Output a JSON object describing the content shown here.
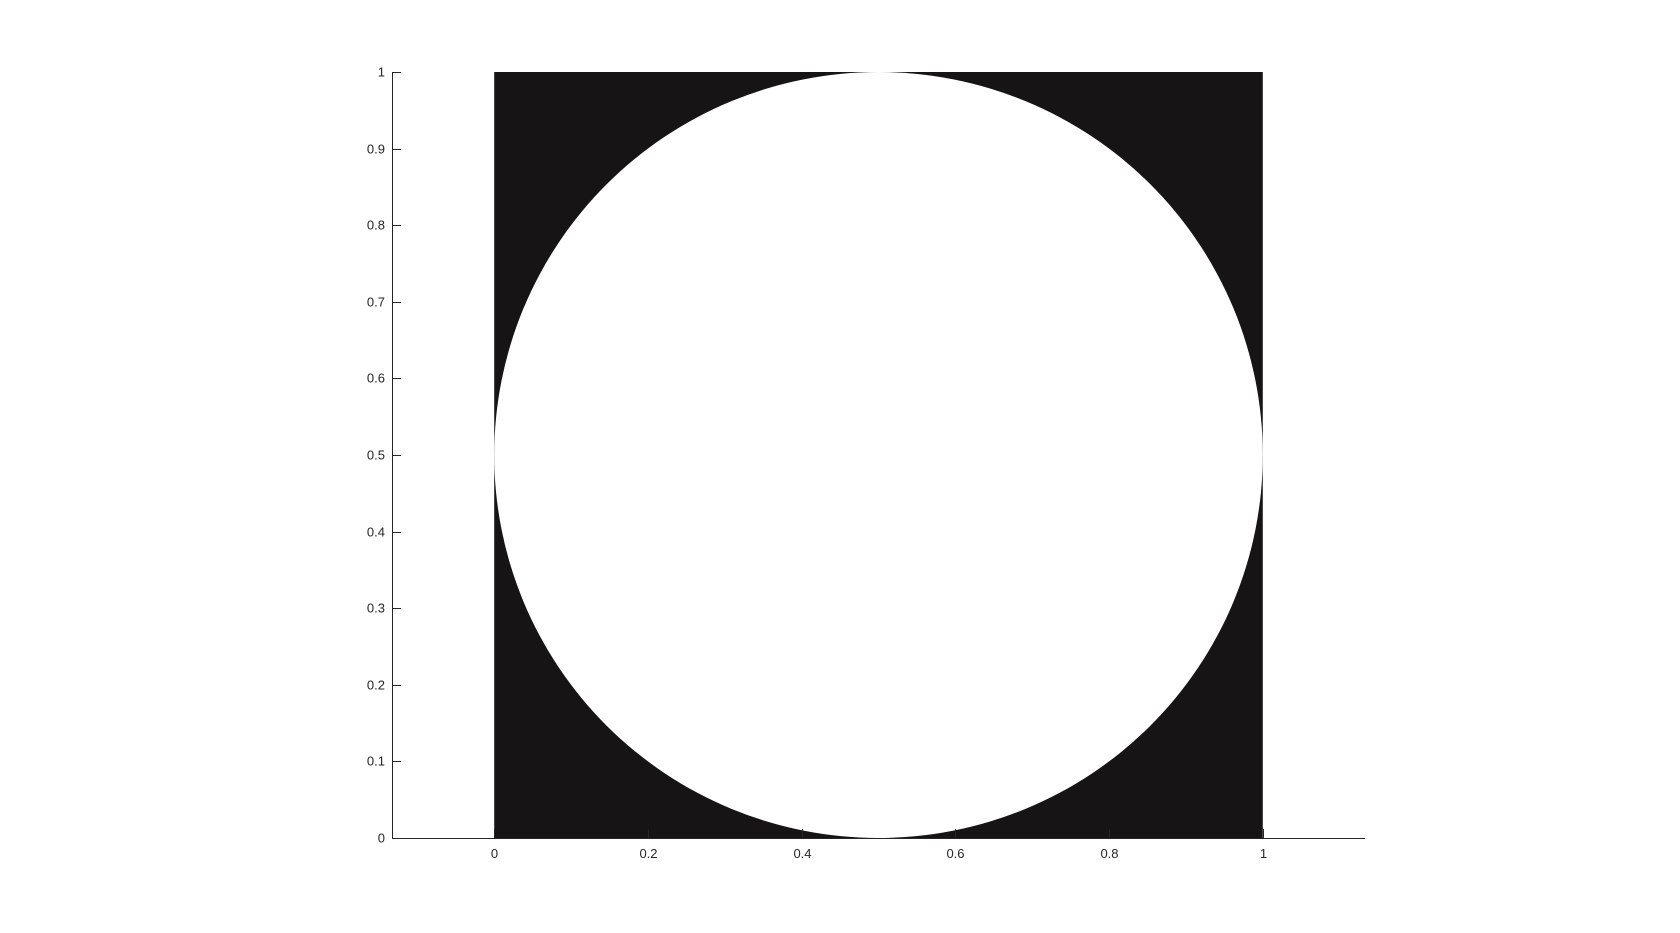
{
  "chart_data": {
    "type": "area",
    "title": "",
    "xlabel": "",
    "ylabel": "",
    "xlim": [
      -0.133,
      1.133
    ],
    "ylim": [
      0,
      1
    ],
    "x_ticks": [
      "0",
      "0.2",
      "0.4",
      "0.6",
      "0.8",
      "1"
    ],
    "x_tick_values": [
      0,
      0.2,
      0.4,
      0.6,
      0.8,
      1
    ],
    "y_ticks": [
      "0",
      "0.1",
      "0.2",
      "0.3",
      "0.4",
      "0.5",
      "0.6",
      "0.7",
      "0.8",
      "0.9",
      "1"
    ],
    "y_tick_values": [
      0,
      0.1,
      0.2,
      0.3,
      0.4,
      0.5,
      0.6,
      0.7,
      0.8,
      0.9,
      1
    ],
    "grid": false,
    "shapes": [
      {
        "kind": "filled-square",
        "x": [
          0,
          1
        ],
        "y": [
          0,
          1
        ],
        "color": "#161414"
      },
      {
        "kind": "filled-circle",
        "center": [
          0.5,
          0.5
        ],
        "radius": 0.5,
        "color": "#ffffff"
      }
    ],
    "colors": {
      "axis": "#262626",
      "fill": "#161414",
      "background": "#ffffff"
    }
  }
}
